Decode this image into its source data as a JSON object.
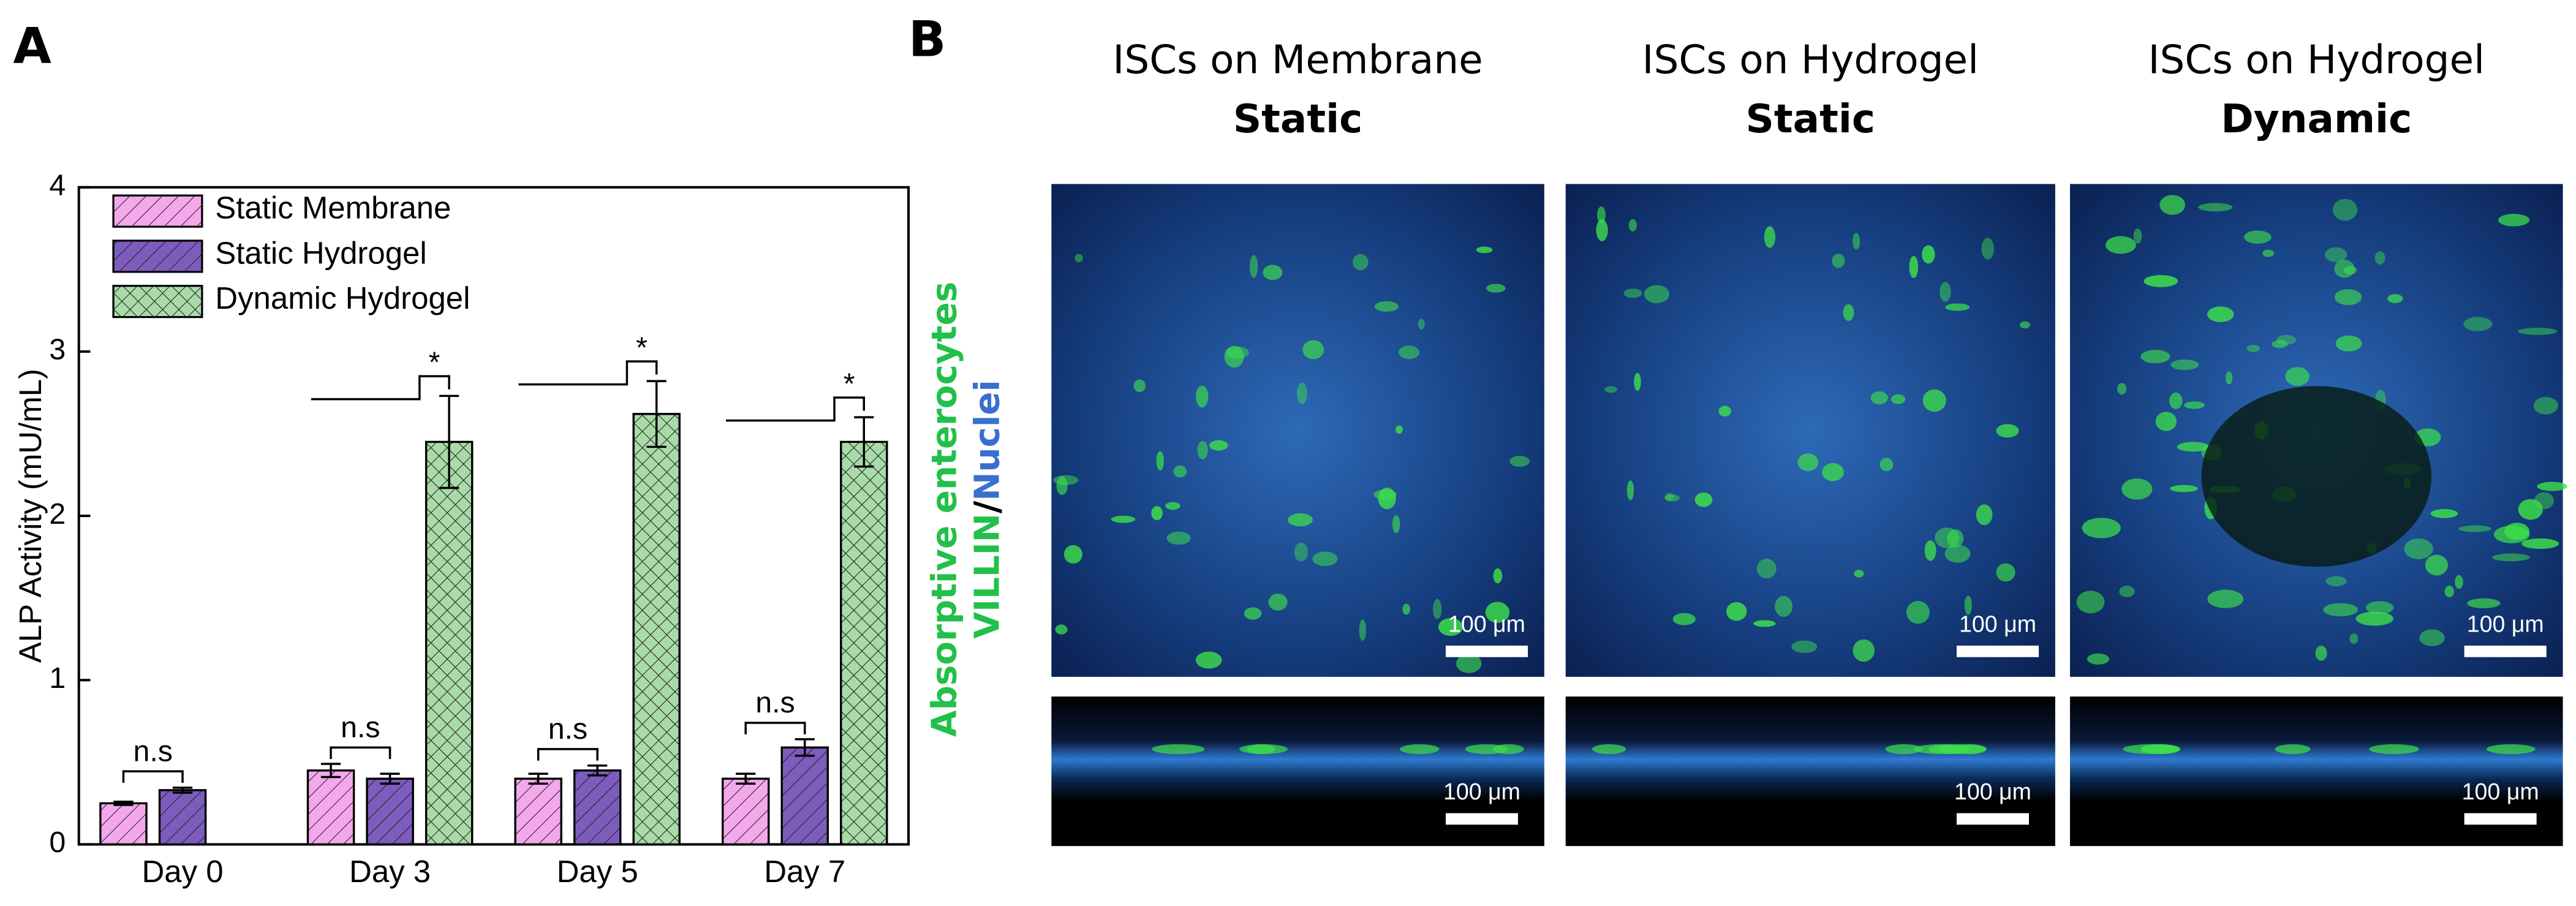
{
  "panel_labels": [
    "A",
    "B"
  ],
  "chart_data": {
    "type": "bar",
    "ylabel": "ALP Activity (mU/mL)",
    "categories": [
      "Day 0",
      "Day 3",
      "Day 5",
      "Day 7"
    ],
    "series": [
      {
        "name": "Static Membrane",
        "color": "#f4a8ec",
        "pattern": "diagonal",
        "values": [
          0.25,
          0.45,
          0.4,
          0.4
        ],
        "errors": [
          0.01,
          0.04,
          0.03,
          0.03
        ]
      },
      {
        "name": "Static Hydrogel",
        "color": "#7d5cbd",
        "pattern": "diagonal",
        "values": [
          0.33,
          0.4,
          0.45,
          0.59
        ],
        "errors": [
          0.015,
          0.03,
          0.03,
          0.05
        ]
      },
      {
        "name": "Dynamic Hydrogel",
        "color": "#a9dba9",
        "pattern": "cross",
        "values": [
          null,
          2.45,
          2.62,
          2.45
        ],
        "errors": [
          null,
          0.28,
          0.2,
          0.15
        ]
      }
    ],
    "static_comparison": [
      "n.s",
      "n.s",
      "n.s",
      "n.s"
    ],
    "dynamic_comparison": [
      null,
      "*",
      "*",
      "*"
    ],
    "ylim": [
      0,
      4
    ],
    "yticks": [
      0,
      1,
      2,
      3,
      4
    ],
    "legend": "upper-left"
  },
  "panel_b": {
    "columns": [
      {
        "title": "ISCs on Membrane",
        "condition": "Static"
      },
      {
        "title": "ISCs on Hydrogel",
        "condition": "Static"
      },
      {
        "title": "ISCs on Hydrogel",
        "condition": "Dynamic"
      }
    ],
    "stain_label": "Absorptive enterocytes",
    "marker_green": "VILLIN",
    "separator": "/",
    "marker_blue": "Nuclei",
    "scale_bar": "100 μm"
  }
}
